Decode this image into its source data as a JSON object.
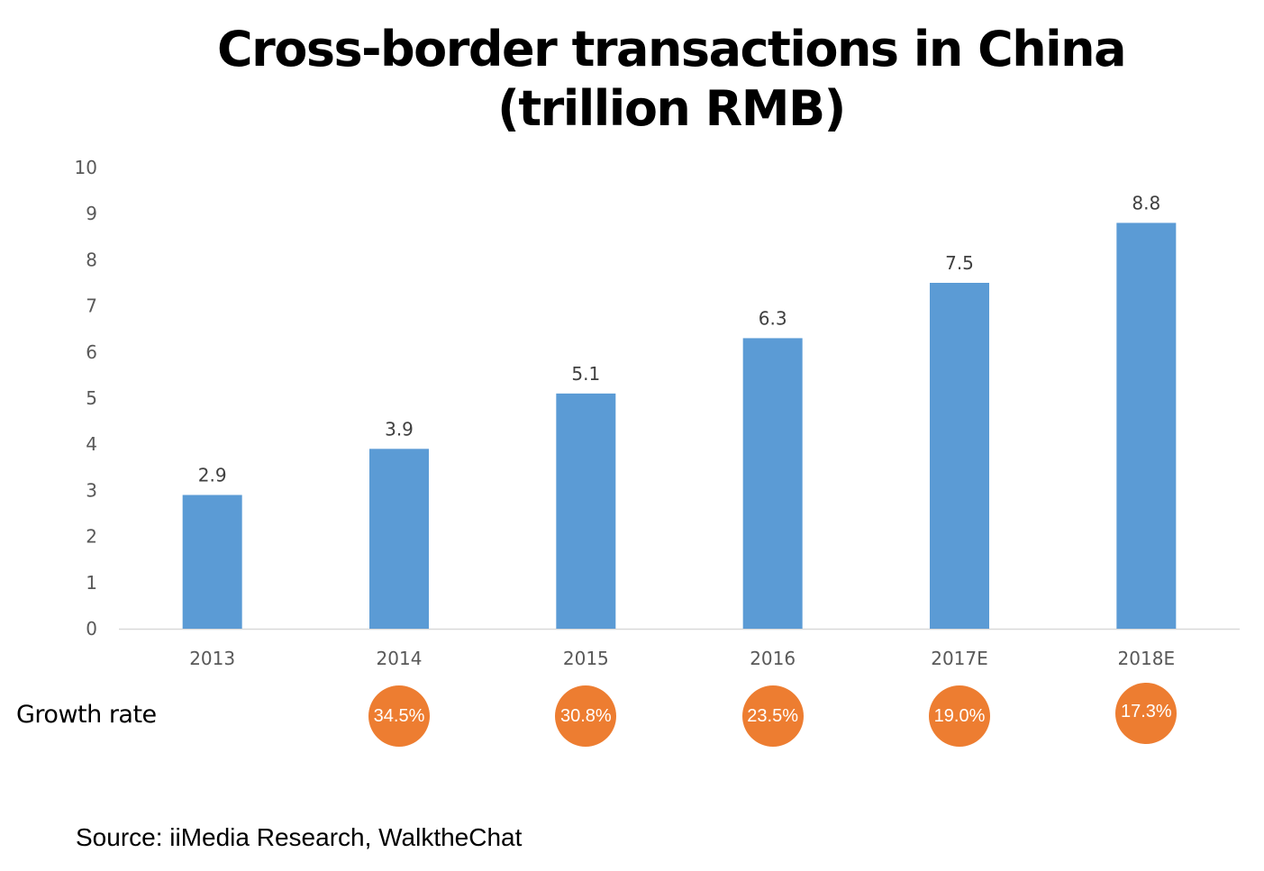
{
  "chart_data": {
    "type": "bar",
    "title_lines": [
      "Cross-border transactions in China",
      "(trillion RMB)"
    ],
    "xlabel": "",
    "ylabel": "",
    "categories": [
      "2013",
      "2014",
      "2015",
      "2016",
      "2017E",
      "2018E"
    ],
    "values": [
      2.9,
      3.9,
      5.1,
      6.3,
      7.5,
      8.8
    ],
    "value_labels": [
      "2.9",
      "3.9",
      "5.1",
      "6.3",
      "7.5",
      "8.8"
    ],
    "ylim": [
      0,
      10
    ],
    "yticks": [
      "0",
      "1",
      "2",
      "3",
      "4",
      "5",
      "6",
      "7",
      "8",
      "9",
      "10"
    ],
    "grid": false,
    "legend": "none",
    "bar_color": "#5b9bd5",
    "growth_rate": {
      "label": "Growth rate",
      "categories": [
        "2014",
        "2015",
        "2016",
        "2017E",
        "2018E"
      ],
      "values": [
        "34.5%",
        "30.8%",
        "23.5%",
        "19.0%",
        "17.3%"
      ],
      "color": "#ed7d31"
    }
  },
  "source": "Source: iiMedia  Research, WalktheChat"
}
